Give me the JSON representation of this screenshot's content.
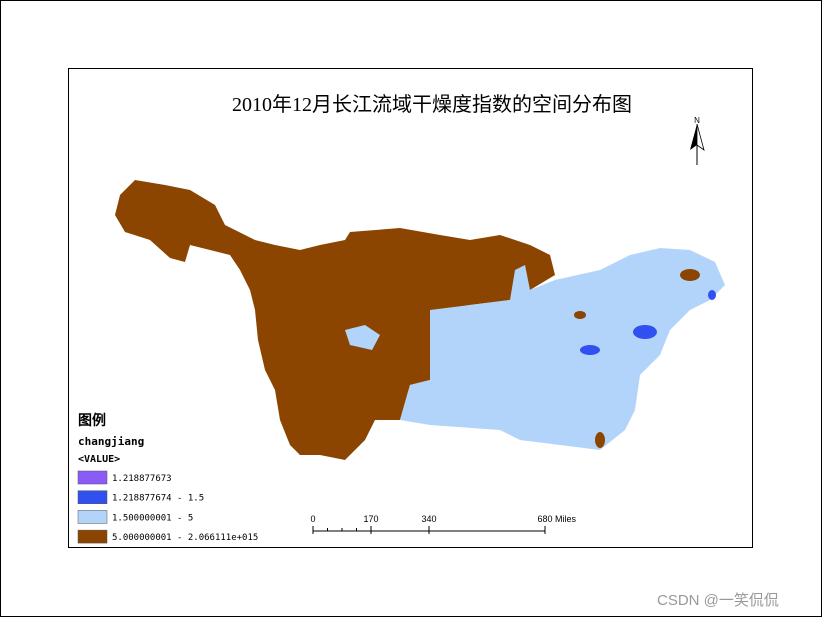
{
  "title": "2010年12月长江流域干燥度指数的空间分布图",
  "legend": {
    "title": "图例",
    "layer": "changjiang",
    "field": "<VALUE>",
    "items": [
      {
        "label": "1.218877673",
        "color": "#8a5cf5"
      },
      {
        "label": "1.218877674 - 1.5",
        "color": "#3050f0"
      },
      {
        "label": "1.500000001 - 5",
        "color": "#b3d4fa"
      },
      {
        "label": "5.000000001 - 2.066111e+015",
        "color": "#8b4500"
      }
    ]
  },
  "scale_bar": {
    "ticks": [
      0,
      170,
      340,
      680
    ],
    "unit": "Miles"
  },
  "watermark": "CSDN @一笑侃侃"
}
